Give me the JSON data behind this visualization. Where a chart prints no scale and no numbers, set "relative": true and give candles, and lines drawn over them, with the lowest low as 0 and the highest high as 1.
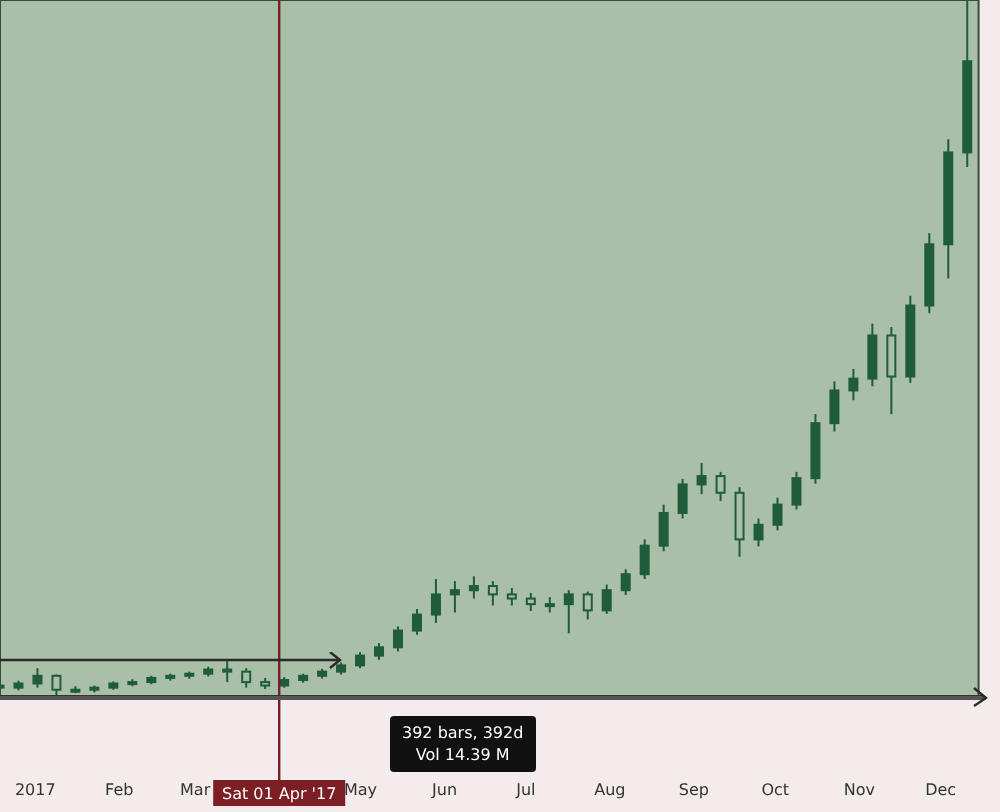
{
  "chart_data": {
    "type": "candlestick",
    "relative": true,
    "color": "#1f5c3c",
    "x": [
      "2016-12-19",
      "2016-12-26",
      "2017-01-02",
      "2017-01-09",
      "2017-01-16",
      "2017-01-23",
      "2017-01-30",
      "2017-02-06",
      "2017-02-13",
      "2017-02-20",
      "2017-02-27",
      "2017-03-06",
      "2017-03-13",
      "2017-03-20",
      "2017-03-27",
      "2017-04-03",
      "2017-04-10",
      "2017-04-17",
      "2017-04-24",
      "2017-05-01",
      "2017-05-08",
      "2017-05-15",
      "2017-05-22",
      "2017-05-29",
      "2017-06-05",
      "2017-06-12",
      "2017-06-19",
      "2017-06-26",
      "2017-07-03",
      "2017-07-10",
      "2017-07-17",
      "2017-07-24",
      "2017-07-31",
      "2017-08-07",
      "2017-08-14",
      "2017-08-21",
      "2017-08-28",
      "2017-09-04",
      "2017-09-11",
      "2017-09-18",
      "2017-09-25",
      "2017-10-02",
      "2017-10-09",
      "2017-10-16",
      "2017-10-23",
      "2017-10-30",
      "2017-11-06",
      "2017-11-13",
      "2017-11-20",
      "2017-11-27",
      "2017-12-04",
      "2017-12-11"
    ],
    "ohlc": [
      [
        0.015,
        0.02,
        0.008,
        0.012
      ],
      [
        0.012,
        0.022,
        0.008,
        0.018
      ],
      [
        0.018,
        0.04,
        0.012,
        0.029
      ],
      [
        0.029,
        0.031,
        0,
        0.009
      ],
      [
        0.009,
        0.014,
        0.004,
        0.009
      ],
      [
        0.009,
        0.015,
        0.005,
        0.012
      ],
      [
        0.012,
        0.021,
        0.009,
        0.018
      ],
      [
        0.018,
        0.024,
        0.014,
        0.02
      ],
      [
        0.02,
        0.029,
        0.017,
        0.026
      ],
      [
        0.026,
        0.032,
        0.022,
        0.029
      ],
      [
        0.029,
        0.035,
        0.025,
        0.032
      ],
      [
        0.032,
        0.042,
        0.028,
        0.038
      ],
      [
        0.038,
        0.05,
        0.02,
        0.035
      ],
      [
        0.035,
        0.04,
        0.012,
        0.02
      ],
      [
        0.02,
        0.026,
        0.01,
        0.015
      ],
      [
        0.015,
        0.027,
        0.012,
        0.023
      ],
      [
        0.023,
        0.032,
        0.019,
        0.029
      ],
      [
        0.029,
        0.039,
        0.025,
        0.035
      ],
      [
        0.035,
        0.048,
        0.031,
        0.044
      ],
      [
        0.044,
        0.063,
        0.04,
        0.058
      ],
      [
        0.058,
        0.076,
        0.052,
        0.07
      ],
      [
        0.07,
        0.1,
        0.064,
        0.094
      ],
      [
        0.094,
        0.125,
        0.088,
        0.117
      ],
      [
        0.117,
        0.168,
        0.105,
        0.146
      ],
      [
        0.146,
        0.165,
        0.12,
        0.152
      ],
      [
        0.152,
        0.172,
        0.14,
        0.158
      ],
      [
        0.158,
        0.165,
        0.13,
        0.146
      ],
      [
        0.146,
        0.155,
        0.13,
        0.14
      ],
      [
        0.14,
        0.148,
        0.122,
        0.132
      ],
      [
        0.132,
        0.142,
        0.12,
        0.132
      ],
      [
        0.132,
        0.152,
        0.09,
        0.146
      ],
      [
        0.146,
        0.15,
        0.11,
        0.123
      ],
      [
        0.123,
        0.16,
        0.118,
        0.152
      ],
      [
        0.152,
        0.182,
        0.145,
        0.175
      ],
      [
        0.175,
        0.225,
        0.168,
        0.216
      ],
      [
        0.216,
        0.275,
        0.208,
        0.263
      ],
      [
        0.263,
        0.312,
        0.255,
        0.304
      ],
      [
        0.304,
        0.335,
        0.29,
        0.316
      ],
      [
        0.316,
        0.322,
        0.28,
        0.292
      ],
      [
        0.292,
        0.3,
        0.2,
        0.225
      ],
      [
        0.225,
        0.255,
        0.215,
        0.246
      ],
      [
        0.246,
        0.285,
        0.238,
        0.275
      ],
      [
        0.275,
        0.322,
        0.268,
        0.313
      ],
      [
        0.313,
        0.405,
        0.305,
        0.392
      ],
      [
        0.392,
        0.452,
        0.38,
        0.439
      ],
      [
        0.439,
        0.47,
        0.425,
        0.456
      ],
      [
        0.456,
        0.535,
        0.445,
        0.518
      ],
      [
        0.518,
        0.53,
        0.405,
        0.459
      ],
      [
        0.459,
        0.575,
        0.45,
        0.561
      ],
      [
        0.561,
        0.665,
        0.55,
        0.649
      ],
      [
        0.649,
        0.8,
        0.6,
        0.781
      ],
      [
        0.781,
        1,
        0.76,
        0.912
      ]
    ],
    "xlim": [
      "2016-12-19",
      "2017-12-17"
    ],
    "xticks": [
      {
        "value": "2017-01-01",
        "label": "2017"
      },
      {
        "value": "2017-02-01",
        "label": "Feb"
      },
      {
        "value": "2017-03-01",
        "label": "Mar"
      },
      {
        "value": "2017-05-01",
        "label": "May"
      },
      {
        "value": "2017-06-01",
        "label": "Jun"
      },
      {
        "value": "2017-07-01",
        "label": "Jul"
      },
      {
        "value": "2017-08-01",
        "label": "Aug"
      },
      {
        "value": "2017-09-01",
        "label": "Sep"
      },
      {
        "value": "2017-10-01",
        "label": "Oct"
      },
      {
        "value": "2017-11-01",
        "label": "Nov"
      },
      {
        "value": "2017-12-01",
        "label": "Dec"
      }
    ],
    "ref_lines": [
      {
        "axis": "x",
        "value": "2017-04-01",
        "label": "Sat 01 Apr '17",
        "color": "#7b1f24"
      }
    ],
    "bands": [
      {
        "axis": "x",
        "from": "2016-12-19",
        "to": "2017-12-15",
        "color": "#a9bfa8"
      }
    ],
    "annotations": [
      "392 bars, 392d",
      "Vol 14.39 M"
    ],
    "grid": false
  }
}
